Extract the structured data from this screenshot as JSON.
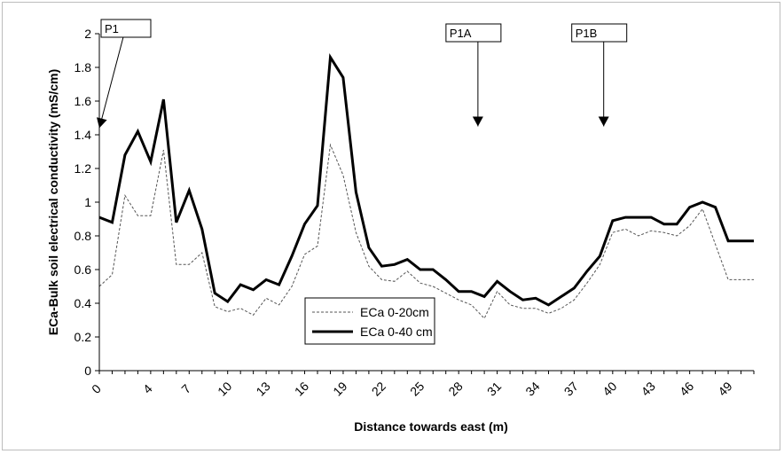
{
  "chart_data": {
    "type": "line",
    "xlabel": "Distance towards east (m)",
    "ylabel": "ECa-Bulk soil electrical conductivity (mS/cm)",
    "ylim": [
      0,
      2
    ],
    "xlim": [
      0,
      51
    ],
    "x_tick_labels": [
      "0",
      "4",
      "7",
      "10",
      "13",
      "16",
      "19",
      "22",
      "25",
      "28",
      "31",
      "34",
      "37",
      "40",
      "43",
      "46",
      "49"
    ],
    "y_tick_labels": [
      "0",
      "0.2",
      "0.4",
      "0.6",
      "0.8",
      "1",
      "1.2",
      "1.4",
      "1.6",
      "1.8",
      "2"
    ],
    "grid": false,
    "legend_position": "center",
    "x": [
      0,
      1,
      2,
      3,
      4,
      5,
      6,
      7,
      8,
      9,
      10,
      11,
      12,
      13,
      14,
      15,
      16,
      17,
      18,
      19,
      20,
      21,
      22,
      23,
      24,
      25,
      26,
      27,
      28,
      29,
      30,
      31,
      32,
      33,
      34,
      35,
      36,
      37,
      38,
      39,
      40,
      41,
      42,
      43,
      44,
      45,
      46,
      47,
      48,
      49,
      50,
      51
    ],
    "series": [
      {
        "name": "ECa 0-20cm",
        "style": "dashed",
        "color": "#555555",
        "values": [
          0.5,
          0.57,
          1.04,
          0.92,
          0.92,
          1.31,
          0.63,
          0.63,
          0.7,
          0.38,
          0.35,
          0.37,
          0.33,
          0.43,
          0.39,
          0.5,
          0.69,
          0.74,
          1.34,
          1.16,
          0.82,
          0.62,
          0.54,
          0.53,
          0.59,
          0.52,
          0.5,
          0.46,
          0.42,
          0.39,
          0.31,
          0.47,
          0.39,
          0.37,
          0.37,
          0.34,
          0.37,
          0.42,
          0.52,
          0.63,
          0.82,
          0.84,
          0.8,
          0.83,
          0.82,
          0.8,
          0.86,
          0.96,
          0.75,
          0.54,
          0.54,
          0.54
        ]
      },
      {
        "name": "ECa 0-40 cm",
        "style": "solid",
        "color": "#000000",
        "values": [
          0.91,
          0.88,
          1.28,
          1.42,
          1.24,
          1.61,
          0.88,
          1.07,
          0.84,
          0.46,
          0.41,
          0.51,
          0.48,
          0.54,
          0.51,
          0.68,
          0.87,
          0.98,
          1.86,
          1.74,
          1.06,
          0.73,
          0.62,
          0.63,
          0.66,
          0.6,
          0.6,
          0.54,
          0.47,
          0.47,
          0.44,
          0.53,
          0.47,
          0.42,
          0.43,
          0.39,
          0.44,
          0.49,
          0.59,
          0.68,
          0.89,
          0.91,
          0.91,
          0.91,
          0.87,
          0.87,
          0.97,
          1.0,
          0.97,
          0.77,
          0.77,
          0.77
        ]
      }
    ],
    "annotations": [
      {
        "label": "P1",
        "arrow_from_x": 2,
        "arrow_to_x": 0,
        "arrow_to_y": 1.44
      },
      {
        "label": "P1A",
        "arrow_x": 29.5,
        "arrow_to_y": 1.45
      },
      {
        "label": "P1B",
        "arrow_x": 39.3,
        "arrow_to_y": 1.45
      }
    ]
  }
}
